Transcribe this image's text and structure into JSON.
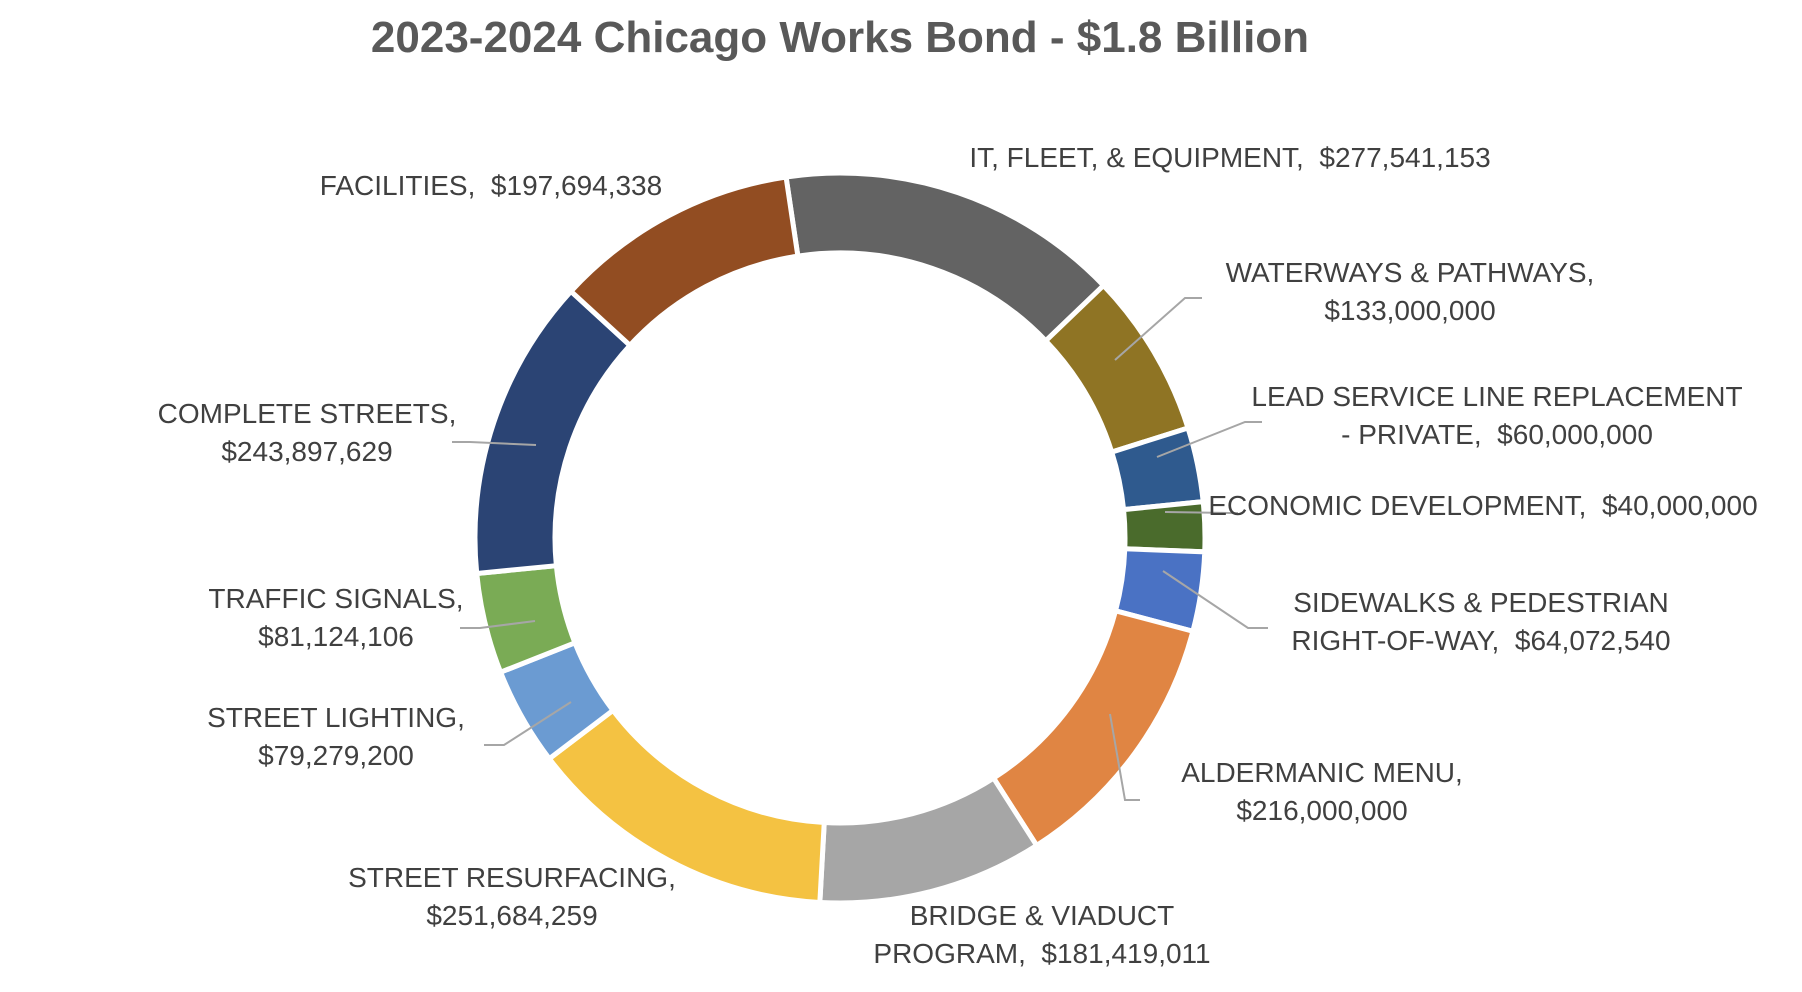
{
  "chart_data": {
    "type": "pie",
    "variant": "donut",
    "title": "2023-2024 Chicago Works Bond - $1.8 Billion",
    "slices": [
      {
        "label": "IT, FLEET, & EQUIPMENT,",
        "value": 277541153,
        "value_label": "$277,541,153",
        "color": "#636363"
      },
      {
        "label": "WATERWAYS & PATHWAYS,",
        "value": 133000000,
        "value_label": "$133,000,000",
        "color": "#8f7424"
      },
      {
        "label": "LEAD SERVICE LINE REPLACEMENT - PRIVATE,",
        "value": 60000000,
        "value_label": "$60,000,000",
        "color": "#2f5a8e"
      },
      {
        "label": "ECONOMIC DEVELOPMENT,",
        "value": 40000000,
        "value_label": "$40,000,000",
        "color": "#4a6b2c"
      },
      {
        "label": "SIDEWALKS & PEDESTRIAN RIGHT-OF-WAY,",
        "value": 64072540,
        "value_label": "$64,072,540",
        "color": "#4a72c4"
      },
      {
        "label": "ALDERMANIC MENU,",
        "value": 216000000,
        "value_label": "$216,000,000",
        "color": "#e08543"
      },
      {
        "label": "BRIDGE & VIADUCT PROGRAM,",
        "value": 181419011,
        "value_label": "$181,419,011",
        "color": "#a6a6a6"
      },
      {
        "label": "STREET RESURFACING,",
        "value": 251684259,
        "value_label": "$251,684,259",
        "color": "#f4c242"
      },
      {
        "label": "STREET LIGHTING,",
        "value": 79279200,
        "value_label": "$79,279,200",
        "color": "#6b9bd2"
      },
      {
        "label": "TRAFFIC SIGNALS,",
        "value": 81124106,
        "value_label": "$81,124,106",
        "color": "#7aab55"
      },
      {
        "label": "COMPLETE STREETS,",
        "value": 243897629,
        "value_label": "$243,897,629",
        "color": "#2b4474"
      },
      {
        "label": "FACILITIES,",
        "value": 197694338,
        "value_label": "$197,694,338",
        "color": "#924d22"
      }
    ]
  }
}
